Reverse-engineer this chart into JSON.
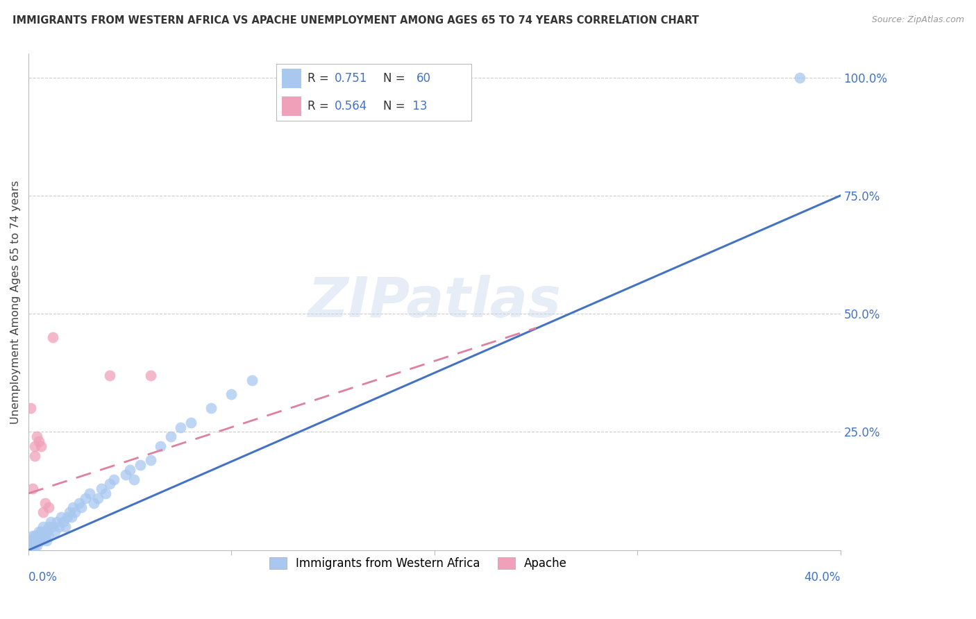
{
  "title": "IMMIGRANTS FROM WESTERN AFRICA VS APACHE UNEMPLOYMENT AMONG AGES 65 TO 74 YEARS CORRELATION CHART",
  "source": "Source: ZipAtlas.com",
  "ylabel": "Unemployment Among Ages 65 to 74 years",
  "xlim": [
    0.0,
    0.4
  ],
  "ylim": [
    0.0,
    1.05
  ],
  "blue_color": "#A8C8F0",
  "pink_color": "#F0A0B8",
  "blue_line_color": "#4472C4",
  "pink_line_color": "#E080A0",
  "watermark": "ZIPatlas",
  "blue_scatter_x": [
    0.001,
    0.001,
    0.002,
    0.002,
    0.002,
    0.003,
    0.003,
    0.003,
    0.003,
    0.004,
    0.004,
    0.004,
    0.005,
    0.005,
    0.005,
    0.006,
    0.006,
    0.007,
    0.007,
    0.008,
    0.008,
    0.009,
    0.009,
    0.01,
    0.01,
    0.011,
    0.012,
    0.013,
    0.014,
    0.015,
    0.016,
    0.017,
    0.018,
    0.019,
    0.02,
    0.021,
    0.022,
    0.023,
    0.025,
    0.026,
    0.028,
    0.03,
    0.032,
    0.034,
    0.036,
    0.038,
    0.04,
    0.042,
    0.048,
    0.05,
    0.052,
    0.055,
    0.06,
    0.065,
    0.07,
    0.075,
    0.08,
    0.09,
    0.1,
    0.11,
    0.38
  ],
  "blue_scatter_y": [
    0.01,
    0.02,
    0.01,
    0.02,
    0.03,
    0.01,
    0.02,
    0.03,
    0.02,
    0.01,
    0.03,
    0.02,
    0.02,
    0.03,
    0.04,
    0.02,
    0.04,
    0.03,
    0.05,
    0.04,
    0.03,
    0.04,
    0.02,
    0.05,
    0.03,
    0.06,
    0.05,
    0.04,
    0.06,
    0.05,
    0.07,
    0.06,
    0.05,
    0.07,
    0.08,
    0.07,
    0.09,
    0.08,
    0.1,
    0.09,
    0.11,
    0.12,
    0.1,
    0.11,
    0.13,
    0.12,
    0.14,
    0.15,
    0.16,
    0.17,
    0.15,
    0.18,
    0.19,
    0.22,
    0.24,
    0.26,
    0.27,
    0.3,
    0.33,
    0.36,
    1.0
  ],
  "pink_scatter_x": [
    0.001,
    0.002,
    0.003,
    0.003,
    0.004,
    0.005,
    0.006,
    0.007,
    0.008,
    0.01,
    0.012,
    0.04,
    0.06
  ],
  "pink_scatter_y": [
    0.3,
    0.13,
    0.2,
    0.22,
    0.24,
    0.23,
    0.22,
    0.08,
    0.1,
    0.09,
    0.45,
    0.37,
    0.37
  ],
  "blue_line_x": [
    0.0,
    0.4
  ],
  "blue_line_y": [
    0.0,
    0.75
  ],
  "pink_line_x": [
    0.0,
    0.25
  ],
  "pink_line_y": [
    0.12,
    0.47
  ],
  "legend_x": "Immigrants from Western Africa",
  "legend_apache": "Apache",
  "axis_color": "#4472C4",
  "grid_color": "#CCCCCC",
  "title_fontsize": 11
}
